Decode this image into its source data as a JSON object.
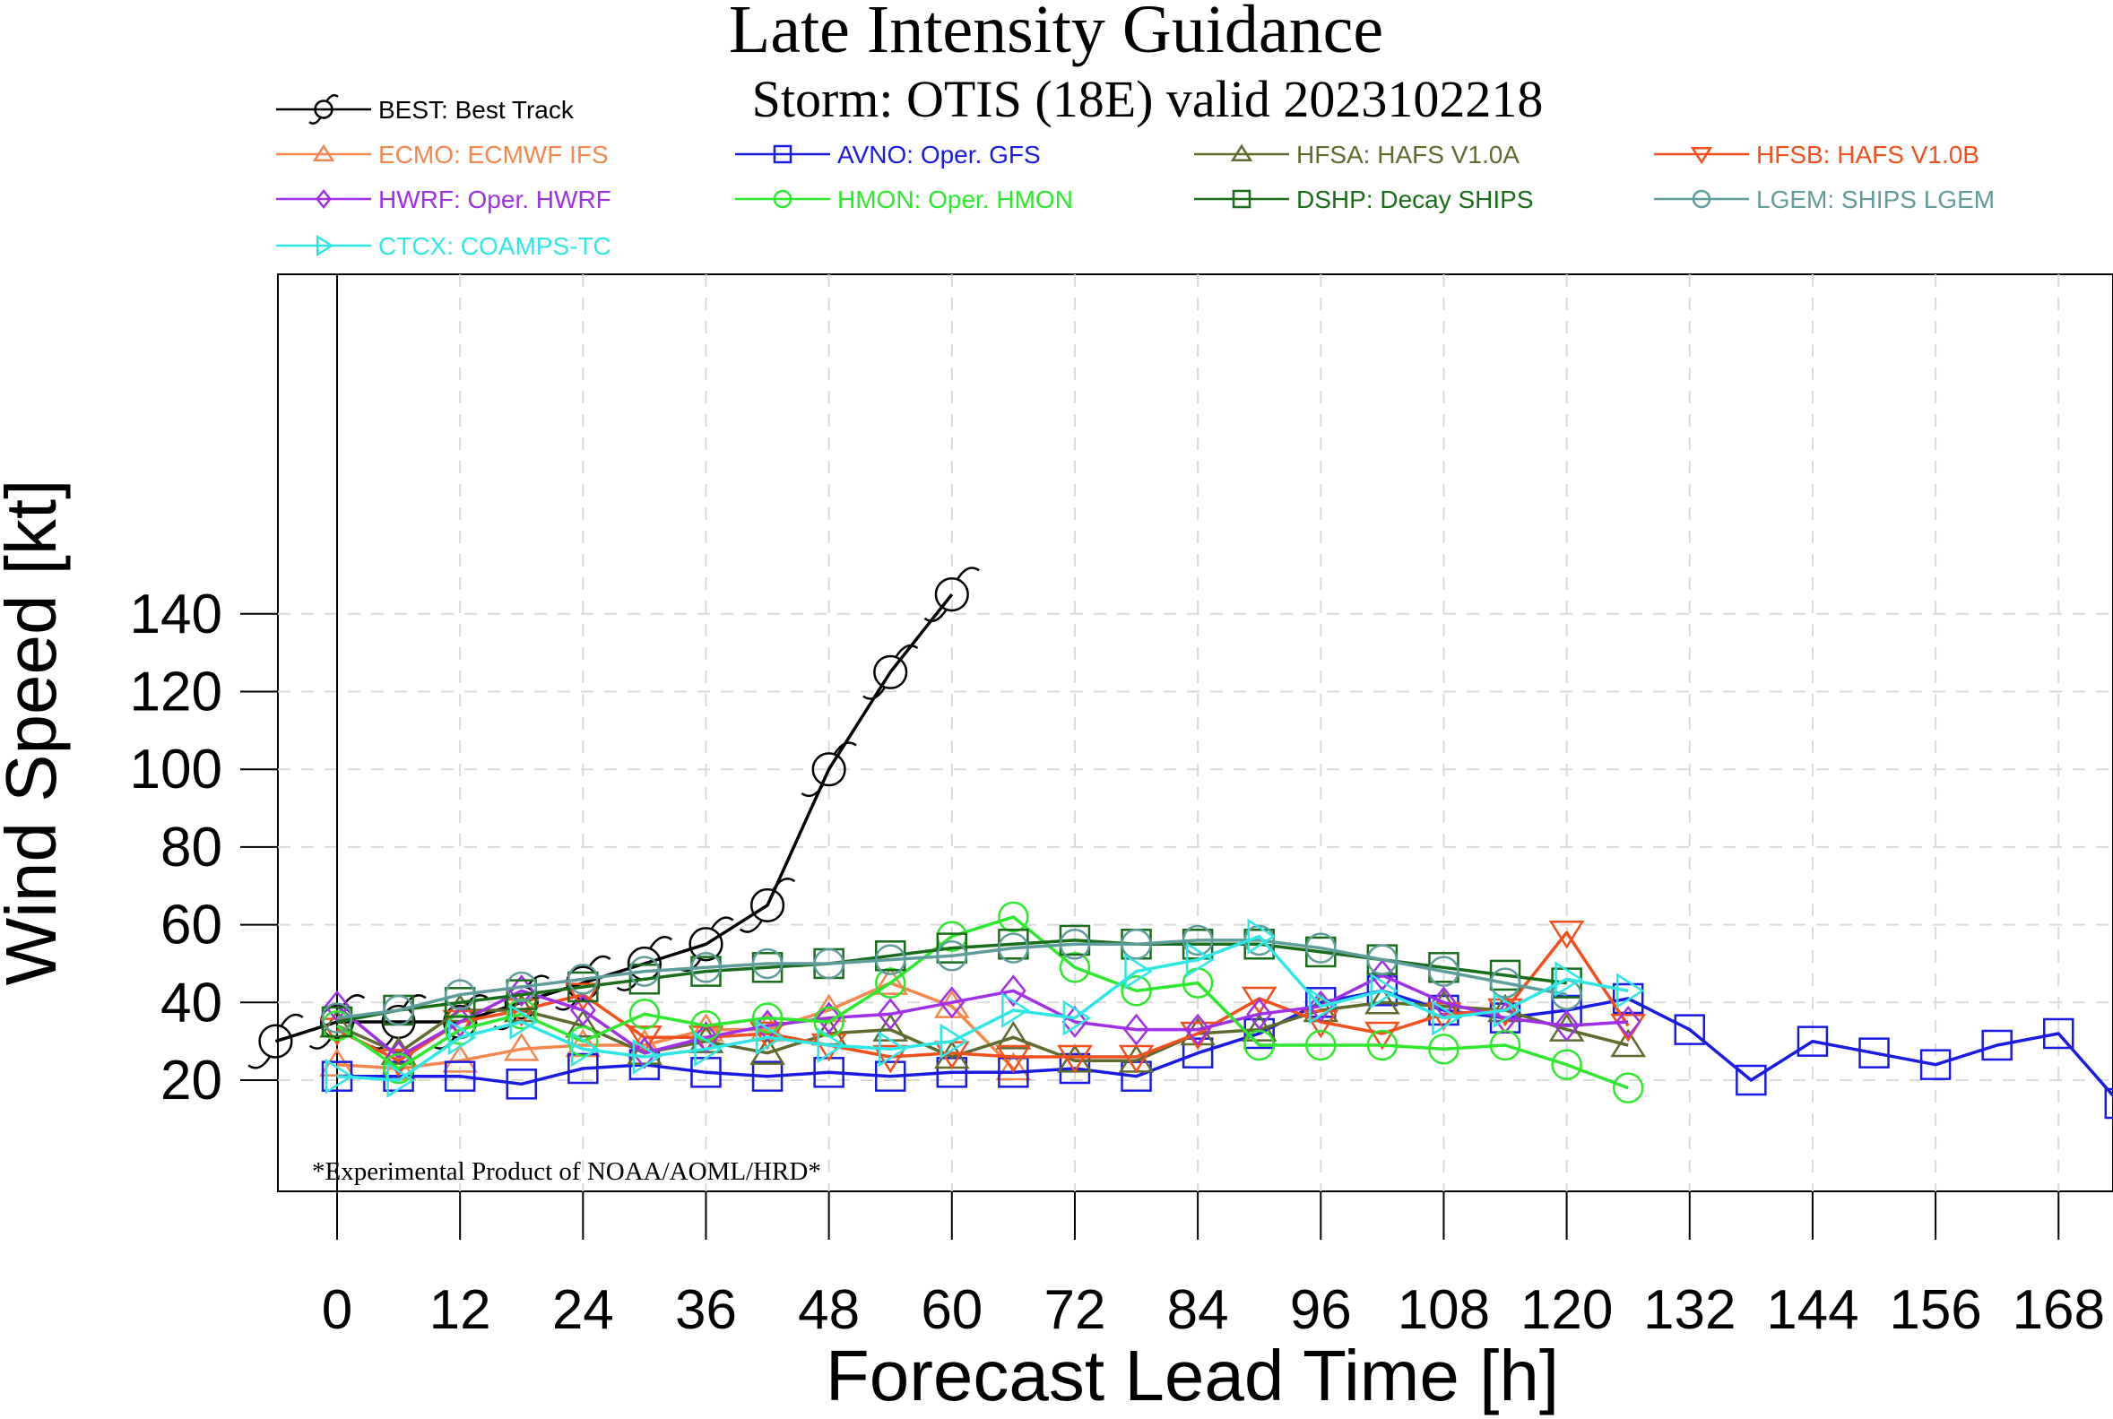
{
  "header": {
    "title": "Late Intensity Guidance",
    "subtitle": "Storm: OTIS (18E) valid 2023102218"
  },
  "footnote": "*Experimental Product of NOAA/AOML/HRD*",
  "chart_data": {
    "type": "line",
    "xlabel": "Forecast Lead Time [h]",
    "ylabel": "Wind Speed [kt]",
    "xlim": [
      -30,
      180
    ],
    "ylim": [
      5,
      160
    ],
    "xticks": [
      "0",
      "12",
      "24",
      "36",
      "48",
      "60",
      "72",
      "84",
      "96",
      "108",
      "120",
      "132",
      "144",
      "156",
      "168"
    ],
    "yticks": [
      "20",
      "40",
      "60",
      "80",
      "100",
      "120",
      "140"
    ],
    "grid": true,
    "legend_position": "top",
    "series": [
      {
        "key": "best",
        "label": "BEST: Best Track",
        "color": "#000000",
        "marker": "hurricane",
        "x": [
          -6,
          0,
          6,
          12,
          18,
          24,
          30,
          36,
          42,
          48,
          54,
          60
        ],
        "y": [
          30,
          35,
          35,
          35,
          40,
          45,
          50,
          55,
          65,
          100,
          125,
          145
        ]
      },
      {
        "key": "ecmo",
        "label": "ECMO: ECMWF IFS",
        "color": "#f4874e",
        "marker": "triangle",
        "x": [
          0,
          6,
          12,
          18,
          24,
          30,
          36,
          42,
          48,
          54,
          60,
          66
        ],
        "y": [
          24,
          23,
          25,
          28,
          29,
          29,
          33,
          33,
          38,
          45,
          39,
          23
        ]
      },
      {
        "key": "avno",
        "label": "AVNO: Oper. GFS",
        "color": "#1a1ae6",
        "marker": "square",
        "x": [
          0,
          6,
          12,
          18,
          24,
          30,
          36,
          42,
          48,
          54,
          60,
          66,
          72,
          78,
          84,
          90,
          96,
          102,
          108,
          114,
          120,
          126,
          132,
          138,
          144,
          150,
          156,
          162,
          168,
          174
        ],
        "y": [
          21,
          21,
          21,
          19,
          23,
          24,
          22,
          21,
          22,
          21,
          22,
          22,
          23,
          21,
          27,
          32,
          40,
          43,
          38,
          36,
          38,
          41,
          33,
          20,
          30,
          27,
          24,
          29,
          32,
          14
        ]
      },
      {
        "key": "hfsa",
        "label": "HFSA: HAFS V1.0A",
        "color": "#5e6b2e",
        "marker": "triangle",
        "x": [
          0,
          6,
          12,
          18,
          24,
          30,
          36,
          42,
          48,
          54,
          60,
          66,
          72,
          78,
          84,
          90,
          96,
          102,
          108,
          114,
          120,
          126
        ],
        "y": [
          34,
          27,
          38,
          38,
          34,
          27,
          30,
          27,
          32,
          33,
          26,
          31,
          25,
          25,
          32,
          33,
          38,
          40,
          39,
          38,
          33,
          29
        ]
      },
      {
        "key": "hfsb",
        "label": "HFSB: HAFS V1.0B",
        "color": "#f24f1c",
        "marker": "triangle-down",
        "x": [
          0,
          6,
          12,
          18,
          24,
          30,
          36,
          42,
          48,
          54,
          60,
          66,
          72,
          78,
          84,
          90,
          96,
          102,
          108,
          114,
          120,
          126
        ],
        "y": [
          33,
          25,
          35,
          38,
          42,
          31,
          31,
          32,
          29,
          26,
          27,
          26,
          26,
          26,
          32,
          41,
          35,
          32,
          37,
          38,
          58,
          34
        ]
      },
      {
        "key": "hwrf",
        "label": "HWRF: Oper. HWRF",
        "color": "#a030e8",
        "marker": "diamond",
        "x": [
          0,
          6,
          12,
          18,
          24,
          30,
          36,
          42,
          48,
          54,
          60,
          66,
          72,
          78,
          84,
          90,
          96,
          102,
          108,
          114,
          120,
          126
        ],
        "y": [
          39,
          26,
          35,
          43,
          38,
          27,
          31,
          34,
          36,
          37,
          40,
          43,
          35,
          33,
          33,
          37,
          39,
          47,
          40,
          36,
          34,
          35
        ]
      },
      {
        "key": "hmon",
        "label": "HMON: Oper. HMON",
        "color": "#2de82d",
        "marker": "circle",
        "x": [
          0,
          6,
          12,
          18,
          24,
          30,
          36,
          42,
          48,
          54,
          60,
          66,
          72,
          78,
          84,
          90,
          96,
          102,
          108,
          114,
          120,
          126
        ],
        "y": [
          34,
          23,
          33,
          37,
          30,
          37,
          34,
          36,
          35,
          45,
          57,
          62,
          49,
          43,
          45,
          29,
          29,
          29,
          28,
          29,
          24,
          18
        ]
      },
      {
        "key": "dshp",
        "label": "DSHP: Decay SHIPS",
        "color": "#186e18",
        "marker": "square",
        "x": [
          0,
          6,
          12,
          18,
          24,
          30,
          36,
          42,
          48,
          54,
          60,
          66,
          72,
          78,
          84,
          90,
          96,
          102,
          108,
          114,
          120
        ],
        "y": [
          35,
          38,
          40,
          42,
          44,
          46,
          48,
          49,
          50,
          52,
          54,
          55,
          56,
          55,
          55,
          55,
          53,
          51,
          49,
          47,
          45
        ]
      },
      {
        "key": "lgem",
        "label": "LGEM: SHIPS LGEM",
        "color": "#5f9c9c",
        "marker": "circle",
        "x": [
          0,
          6,
          12,
          18,
          24,
          30,
          36,
          42,
          48,
          54,
          60,
          66,
          72,
          78,
          84,
          90,
          96,
          102,
          108,
          114,
          120
        ],
        "y": [
          36,
          38,
          42,
          44,
          46,
          48,
          49,
          50,
          50,
          51,
          52,
          54,
          55,
          55,
          56,
          56,
          54,
          51,
          48,
          45,
          42
        ]
      },
      {
        "key": "ctcx",
        "label": "CTCX: COAMPS-TC",
        "color": "#2ee6e6",
        "marker": "triangle-right",
        "x": [
          0,
          6,
          12,
          18,
          24,
          30,
          36,
          42,
          48,
          54,
          60,
          66,
          72,
          78,
          84,
          90,
          96,
          102,
          108,
          114,
          120,
          126
        ],
        "y": [
          21,
          20,
          31,
          35,
          28,
          26,
          28,
          31,
          29,
          28,
          30,
          38,
          36,
          48,
          51,
          57,
          39,
          43,
          36,
          38,
          46,
          43
        ]
      }
    ]
  }
}
